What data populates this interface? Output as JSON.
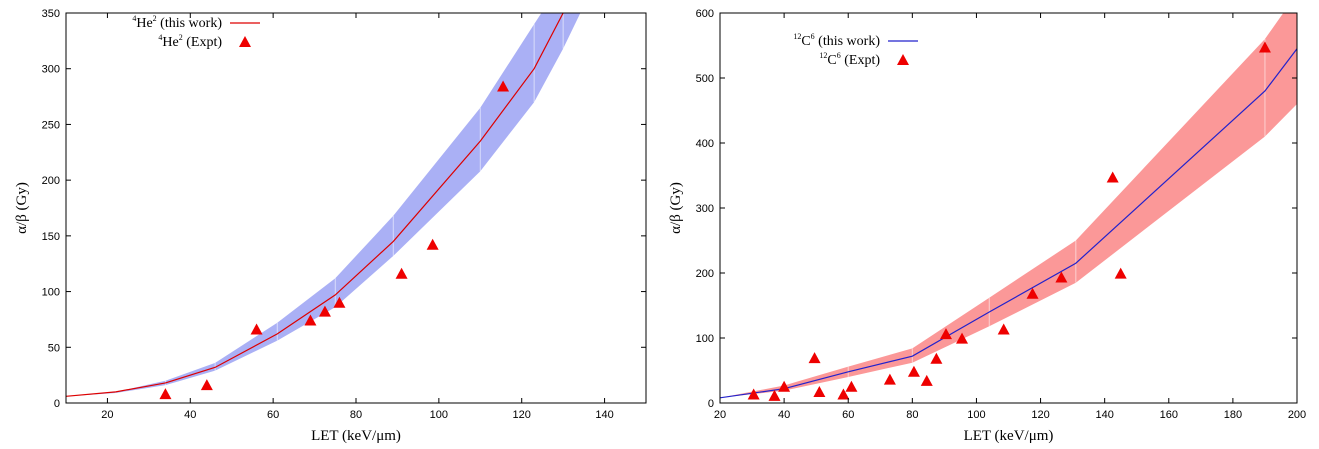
{
  "chart_data": [
    {
      "type": "line",
      "xlabel": "LET (keV/μm)",
      "ylabel": "α/β (Gy)",
      "xlim": [
        10,
        150
      ],
      "ylim": [
        0,
        350
      ],
      "xticks": [
        20,
        40,
        60,
        80,
        100,
        120,
        140
      ],
      "yticks": [
        0,
        50,
        100,
        150,
        200,
        250,
        300,
        350
      ],
      "grid": false,
      "legend_position": "top-left",
      "colors": {
        "line": "#dd0000",
        "band": "#aab0f5",
        "marker": "#ee0000"
      },
      "series": [
        {
          "name": "He (this work)",
          "legend_parts": {
            "mass": "4",
            "base": "He",
            "charge": "2",
            "suffix": " (this work)"
          },
          "kind": "line",
          "x": [
            10,
            22,
            34,
            46,
            61,
            75,
            89,
            110,
            123,
            130,
            150
          ],
          "y": [
            6,
            10,
            18,
            32,
            62,
            97,
            145,
            235,
            300,
            350,
            450
          ]
        },
        {
          "name": "band",
          "kind": "band",
          "x": [
            10,
            22,
            34,
            46,
            61,
            75,
            89,
            110,
            123,
            130,
            140
          ],
          "lower": [
            6,
            9,
            16,
            29,
            56,
            86,
            132,
            208,
            270,
            318,
            395
          ],
          "upper": [
            6,
            10,
            20,
            36,
            72,
            112,
            168,
            265,
            340,
            380,
            430
          ]
        },
        {
          "name": "He (Expt)",
          "legend_parts": {
            "mass": "4",
            "base": "He",
            "charge": "2",
            "suffix": " (Expt)"
          },
          "kind": "scatter",
          "x": [
            34,
            44,
            56,
            69,
            72.5,
            76,
            91,
            98.5,
            115.5
          ],
          "y": [
            8,
            16,
            66,
            74,
            82,
            90,
            116,
            142,
            284
          ]
        }
      ]
    },
    {
      "type": "line",
      "xlabel": "LET (keV/μm)",
      "ylabel": "α/β (Gy)",
      "xlim": [
        20,
        200
      ],
      "ylim": [
        0,
        600
      ],
      "xticks": [
        20,
        40,
        60,
        80,
        100,
        120,
        140,
        160,
        180,
        200
      ],
      "yticks": [
        0,
        100,
        200,
        300,
        400,
        500,
        600
      ],
      "grid": false,
      "legend_position": "top-left",
      "colors": {
        "line": "#2222cc",
        "band": "#fb9898",
        "marker": "#ee0000"
      },
      "series": [
        {
          "name": "C (this work)",
          "legend_parts": {
            "mass": "12",
            "base": "C",
            "charge": "6",
            "suffix": " (this work)"
          },
          "kind": "line",
          "x": [
            20,
            40,
            60,
            80,
            104,
            131,
            190,
            200
          ],
          "y": [
            8,
            22,
            48,
            72,
            140,
            215,
            480,
            545
          ]
        },
        {
          "name": "band",
          "kind": "band",
          "x": [
            20,
            40,
            60,
            80,
            104,
            131,
            190,
            200
          ],
          "lower": [
            8,
            19,
            40,
            62,
            118,
            185,
            410,
            460
          ],
          "upper": [
            8,
            27,
            56,
            84,
            162,
            250,
            560,
            630
          ]
        },
        {
          "name": "C (Expt)",
          "legend_parts": {
            "mass": "12",
            "base": "C",
            "charge": "6",
            "suffix": " (Expt)"
          },
          "kind": "scatter",
          "x": [
            30.5,
            37,
            40,
            49.5,
            51,
            58.5,
            61,
            73,
            80.5,
            84.5,
            87.5,
            90.5,
            95.5,
            108.5,
            117.5,
            126.5,
            142.5,
            145,
            190
          ],
          "y": [
            13,
            11,
            25,
            69,
            17,
            13,
            25,
            36,
            48,
            34,
            68,
            106,
            99,
            113,
            168,
            193,
            347,
            199,
            547
          ]
        }
      ]
    }
  ]
}
